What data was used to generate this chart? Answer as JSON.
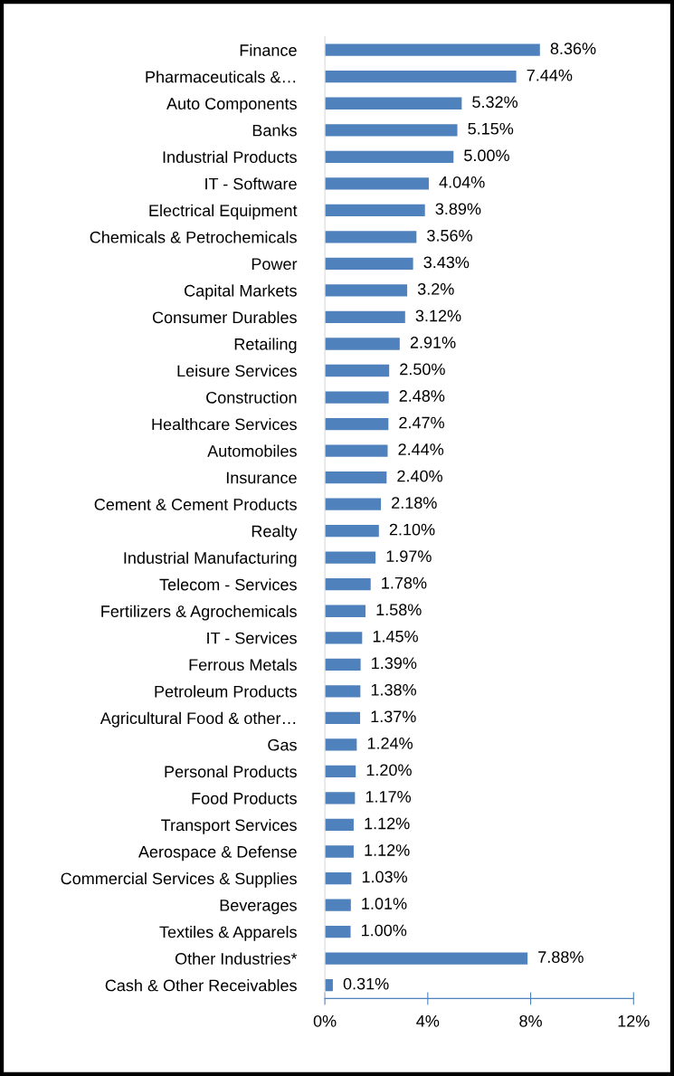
{
  "chart_data": {
    "type": "bar",
    "orientation": "horizontal",
    "categories": [
      "Finance",
      "Pharmaceuticals &…",
      "Auto Components",
      "Banks",
      "Industrial Products",
      "IT - Software",
      "Electrical Equipment",
      "Chemicals & Petrochemicals",
      "Power",
      "Capital Markets",
      "Consumer Durables",
      "Retailing",
      "Leisure Services",
      "Construction",
      "Healthcare Services",
      "Automobiles",
      "Insurance",
      "Cement & Cement Products",
      "Realty",
      "Industrial Manufacturing",
      "Telecom - Services",
      "Fertilizers & Agrochemicals",
      "IT - Services",
      "Ferrous Metals",
      "Petroleum Products",
      "Agricultural Food & other…",
      "Gas",
      "Personal Products",
      "Food Products",
      "Transport Services",
      "Aerospace & Defense",
      "Commercial Services & Supplies",
      "Beverages",
      "Textiles & Apparels",
      "Other Industries*",
      "Cash & Other Receivables"
    ],
    "values": [
      8.36,
      7.44,
      5.32,
      5.15,
      5.0,
      4.04,
      3.89,
      3.56,
      3.43,
      3.2,
      3.12,
      2.91,
      2.5,
      2.48,
      2.47,
      2.44,
      2.4,
      2.18,
      2.1,
      1.97,
      1.78,
      1.58,
      1.45,
      1.39,
      1.38,
      1.37,
      1.24,
      1.2,
      1.17,
      1.12,
      1.12,
      1.03,
      1.01,
      1.0,
      7.88,
      0.31
    ],
    "value_labels": [
      "8.36%",
      "7.44%",
      "5.32%",
      "5.15%",
      "5.00%",
      "4.04%",
      "3.89%",
      "3.56%",
      "3.43%",
      "3.2%",
      "3.12%",
      "2.91%",
      "2.50%",
      "2.48%",
      "2.47%",
      "2.44%",
      "2.40%",
      "2.18%",
      "2.10%",
      "1.97%",
      "1.78%",
      "1.58%",
      "1.45%",
      "1.39%",
      "1.38%",
      "1.37%",
      "1.24%",
      "1.20%",
      "1.17%",
      "1.12%",
      "1.12%",
      "1.03%",
      "1.01%",
      "1.00%",
      "7.88%",
      "0.31%"
    ],
    "color": "#4f81bd",
    "xlim": [
      0,
      12
    ],
    "xticks": [
      {
        "value": 0,
        "label": "0%"
      },
      {
        "value": 4,
        "label": "4%"
      },
      {
        "value": 8,
        "label": "8%"
      },
      {
        "value": 12,
        "label": "12%"
      }
    ],
    "grid": false,
    "legend": false
  }
}
